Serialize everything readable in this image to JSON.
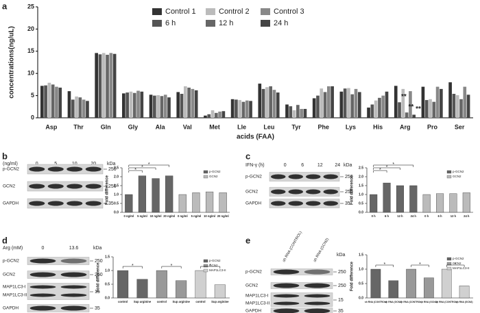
{
  "panel_labels": [
    "a",
    "b",
    "c",
    "d",
    "e"
  ],
  "chart_data": [
    {
      "type": "bar",
      "ylabel": "concentrations(ng/uL)",
      "xlabel": "acids (FAA)",
      "categories": [
        "Asp",
        "Thr",
        "Gln",
        "Gly",
        "Ala",
        "Val",
        "Met",
        "Lle",
        "Leu",
        "Tyr",
        "Phe",
        "Lys",
        "His",
        "Arg",
        "Pro",
        "Ser"
      ],
      "series": [
        {
          "name": "Control 1",
          "color": "#333333",
          "values": [
            7.2,
            6.0,
            14.6,
            5.5,
            5.2,
            5.8,
            0.5,
            4.2,
            7.7,
            3.0,
            4.4,
            5.9,
            2.3,
            7.2,
            7.0,
            8.0
          ]
        },
        {
          "name": "6 h",
          "color": "#555555",
          "values": [
            7.3,
            4.1,
            14.3,
            5.7,
            5.0,
            5.4,
            0.8,
            4.1,
            6.5,
            2.6,
            5.0,
            6.6,
            3.0,
            3.5,
            4.0,
            5.4
          ]
        },
        {
          "name": "Control 2",
          "color": "#bbbbbb",
          "values": [
            7.9,
            4.8,
            14.6,
            5.9,
            5.1,
            7.1,
            1.7,
            4.0,
            6.9,
            1.7,
            6.6,
            6.7,
            3.9,
            6.5,
            4.2,
            5.1
          ]
        },
        {
          "name": "12 h",
          "color": "#666666",
          "values": [
            7.5,
            4.6,
            14.2,
            5.6,
            4.9,
            6.8,
            1.1,
            3.6,
            7.1,
            2.9,
            5.8,
            5.3,
            4.5,
            1.2,
            3.6,
            4.2
          ]
        },
        {
          "name": "Control 3",
          "color": "#888888",
          "values": [
            7.0,
            4.1,
            14.6,
            6.1,
            5.2,
            6.5,
            1.4,
            3.9,
            6.3,
            2.0,
            7.1,
            6.5,
            5.0,
            6.0,
            7.0,
            7.0
          ]
        },
        {
          "name": "24 h",
          "color": "#444444",
          "values": [
            6.8,
            3.8,
            14.4,
            5.9,
            4.6,
            6.2,
            1.5,
            3.8,
            5.7,
            2.0,
            7.1,
            5.8,
            5.9,
            0.7,
            6.5,
            5.2
          ]
        }
      ],
      "ylim": [
        0,
        25
      ],
      "yticks": [
        0,
        5,
        10,
        15,
        20,
        25
      ],
      "annotations": [
        "**",
        "**",
        "**"
      ]
    },
    {
      "type": "bar",
      "ylabel": "Fold difference",
      "categories": [
        "0 ng/ml",
        "5 ng/ml",
        "10 ng/ml",
        "20 ng/ml",
        "0 ng/ml",
        "5 ng/ml",
        "10 ng/ml",
        "20 ng/ml"
      ],
      "series": [
        {
          "name": "p-GCN2",
          "color": "#666666",
          "values": [
            1.0,
            2.05,
            1.9,
            2.05,
            null,
            null,
            null,
            null
          ]
        },
        {
          "name": "GCN2",
          "color": "#bbbbbb",
          "values": [
            null,
            null,
            null,
            null,
            1.0,
            1.1,
            1.15,
            1.1
          ]
        }
      ],
      "ylim": [
        0,
        2.5
      ],
      "yticks": [
        {
          "value": 0,
          "label": "0.0"
        },
        0.5,
        {
          "value": 1,
          "label": "1.0"
        },
        1.5,
        {
          "value": 2,
          "label": "2.0"
        },
        2.5
      ],
      "annotations": [
        "*",
        "*",
        "*"
      ]
    },
    {
      "type": "bar",
      "ylabel": "Fold difference",
      "categories": [
        "0 h",
        "6 h",
        "12 h",
        "24 h",
        "0 h",
        "6 h",
        "12 h",
        "24 h"
      ],
      "series": [
        {
          "name": "p-GCN2",
          "color": "#666666",
          "values": [
            1.0,
            1.65,
            1.5,
            1.5,
            null,
            null,
            null,
            null
          ]
        },
        {
          "name": "GCN2",
          "color": "#bbbbbb",
          "values": [
            null,
            null,
            null,
            null,
            1.0,
            1.05,
            1.05,
            1.1
          ]
        }
      ],
      "ylim": [
        0,
        2.5
      ],
      "yticks": [
        {
          "value": 0,
          "label": "0.0"
        },
        0.5,
        {
          "value": 1,
          "label": "1.0"
        },
        1.5,
        {
          "value": 2,
          "label": "2.0"
        },
        2.5
      ],
      "annotations": [
        "*",
        "*",
        "*"
      ]
    },
    {
      "type": "bar",
      "ylabel": "Fold difference",
      "categories": [
        "control",
        "Sup arginine",
        "control",
        "Sup arginine",
        "control",
        "Sup arginine"
      ],
      "series": [
        {
          "name": "p-GCN2",
          "color": "#666666",
          "values": [
            1.0,
            0.68,
            null,
            null,
            null,
            null
          ]
        },
        {
          "name": "GCN2",
          "color": "#999999",
          "values": [
            null,
            null,
            1.0,
            0.63,
            null,
            null
          ]
        },
        {
          "name": "MAP1LC3-II",
          "color": "#d0d0d0",
          "values": [
            null,
            null,
            null,
            null,
            1.0,
            0.48
          ]
        }
      ],
      "ylim": [
        0,
        1.5
      ],
      "yticks": [
        {
          "value": 0,
          "label": "0.0"
        },
        0.5,
        {
          "value": 1,
          "label": "1.0"
        },
        1.5
      ],
      "annotations": [
        "*",
        "*",
        "*"
      ]
    },
    {
      "type": "bar",
      "ylabel": "Fold difference",
      "categories": [
        "sh RNA (CONTROL)",
        "sh RNA (GCN2)",
        "sh RNA (CONTROL)",
        "sh RNA (GCN2)",
        "sh RNA (CONTROL)",
        "sh RNA (GCN2)"
      ],
      "series": [
        {
          "name": "p-GCN2",
          "color": "#666666",
          "values": [
            1.0,
            0.6,
            null,
            null,
            null,
            null
          ]
        },
        {
          "name": "GCN2",
          "color": "#999999",
          "values": [
            null,
            null,
            1.0,
            0.7,
            null,
            null
          ]
        },
        {
          "name": "MAP1LC3-II",
          "color": "#d0d0d0",
          "values": [
            null,
            null,
            null,
            null,
            1.0,
            0.42
          ]
        }
      ],
      "ylim": [
        0,
        1.5
      ],
      "yticks": [
        {
          "value": 0,
          "label": "0.0"
        },
        0.5,
        {
          "value": 1,
          "label": "1.0"
        },
        1.5
      ],
      "annotations": [
        "*",
        "*",
        "*"
      ]
    }
  ],
  "blots": [
    {
      "unit": "(ng/ml)",
      "lanes": [
        "0",
        "5",
        "10",
        "20"
      ],
      "kda_label": "kDa",
      "rows": [
        {
          "label": "p-GCN2",
          "kda": 250
        },
        {
          "label": "GCN2",
          "kda": 250
        },
        {
          "label": "GAPDH",
          "kda": 35
        }
      ]
    },
    {
      "unit": "IFN-γ  (h)",
      "lanes": [
        "0",
        "6",
        "12",
        "24"
      ],
      "kda_label": "kDa",
      "rows": [
        {
          "label": "p-GCN2",
          "kda": 250
        },
        {
          "label": "GCN2",
          "kda": 250
        },
        {
          "label": "GAPDH",
          "kda": 35
        }
      ]
    },
    {
      "unit": "Arg (mM)",
      "lanes": [
        "0",
        "13.6"
      ],
      "kda_label": "kDa",
      "rows": [
        {
          "label": "p-GCN2",
          "kda": 250
        },
        {
          "label": "GCN2",
          "kda": 250
        },
        {
          "label": "MAP1LC3-I"
        },
        {
          "label": "MAP1LC3-II",
          "kda": 15
        },
        {
          "label": "GAPDH",
          "kda": 35
        }
      ]
    },
    {
      "lanes": [
        "sh RNA (CONTROL)",
        "sh RNA (GCN2)"
      ],
      "kda_label": "kDa",
      "rows": [
        {
          "label": "p-GCN2",
          "kda": 250
        },
        {
          "label": "GCN2",
          "kda": 250
        },
        {
          "label": "MAP1LC3-I"
        },
        {
          "label": "MAP1LC3-II",
          "kda": 15
        },
        {
          "label": "GAPDH",
          "kda": 35
        }
      ]
    }
  ]
}
